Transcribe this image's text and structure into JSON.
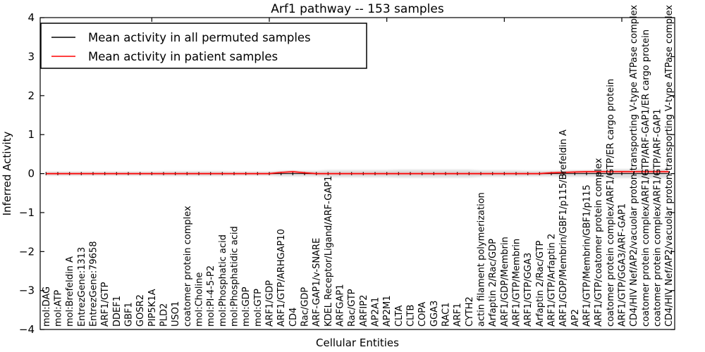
{
  "chart_data": {
    "type": "line",
    "title": "Arf1 pathway -- 153 samples",
    "xlabel": "Cellular Entities",
    "ylabel": "Inferred Activity",
    "ylim": [
      -4,
      4
    ],
    "yticks": [
      4,
      3,
      2,
      1,
      0,
      -1,
      -2,
      -3,
      -4
    ],
    "grid": false,
    "legend_position": "upper left",
    "legend_entries": [
      {
        "label": "Mean activity in all permuted samples",
        "color": "#000000"
      },
      {
        "label": "Mean activity in patient samples",
        "color": "#ff0000"
      }
    ],
    "categories": [
      "mol:DAG",
      "mol:ATP",
      "mol:Brefeldin A",
      "EntrezGene:1313",
      "EntrezGene:79658",
      "ARF1/GTP",
      "DDEF1",
      "GBF1",
      "GOSR2",
      "PIP5K1A",
      "PLD2",
      "USO1",
      "coatomer protein complex",
      "mol:Choline",
      "mol:PI-4-5-P2",
      "mol:Phosphatic acid",
      "mol:Phosphatidic acid",
      "mol:GDP",
      "mol:GTP",
      "ARF1/GDP",
      "ARF1/GTP/ARHGAP10",
      "CD4",
      "Rac/GDP",
      "ARF-GAP1/v-SNARE",
      "KDEL Receptor/Ligand/ARF-GAP1",
      "ARFGAP1",
      "Rac/GTP",
      "ARFIP2",
      "AP2A1",
      "AP2M1",
      "CLTA",
      "CLTB",
      "COPA",
      "GGA3",
      "RAC1",
      "ARF1",
      "CYTH2",
      "actin filament polymerization",
      "Arfaptin 2/Rac/GDP",
      "ARF1/GDP/Membrin",
      "ARF1/GTP/Membrin",
      "ARF1/GTP/GGA3",
      "Arfaptin 2/Rac/GTP",
      "ARF1/GTP/Arfaptin 2",
      "ARF1/GDP/Membrin/GBF1/p115/Brefeldin A",
      "AP2",
      "ARF1/GTP/Membrin/GBF1/p115",
      "ARF1/GTP/coatomer protein complex",
      "coatomer protein complex/ARF1/GTP/ER cargo protein",
      "ARF1/GTP/GGA3/ARF-GAP1",
      "CD4/HIV Nef/AP2/vacuolar proton-transporting V-type ATPase complex",
      "coatomer protein complex/ARF1/GTP/ARF-GAP1/ER cargo protein",
      "coatomer protein complex/ARF1/GTP/ARF-GAP1",
      "CD4/HIV Nef/AP2/vacuolar proton-transporting V-type ATPase complex"
    ],
    "series": [
      {
        "name": "Mean activity in all permuted samples",
        "color": "#000000",
        "values": [
          0,
          0,
          0,
          0,
          0,
          0,
          0,
          0,
          0,
          0,
          0,
          0,
          0,
          0,
          0,
          0,
          0,
          0,
          0,
          0,
          0,
          0,
          0,
          0,
          0,
          0,
          0,
          0,
          0,
          0,
          0,
          0,
          0,
          0,
          0,
          0,
          0,
          0,
          0,
          0,
          0,
          0,
          0,
          0,
          0,
          0,
          0,
          0,
          0,
          0,
          0,
          0,
          0,
          0
        ]
      },
      {
        "name": "Mean activity in patient samples",
        "color": "#ff0000",
        "values": [
          0,
          0,
          0,
          0,
          0,
          0,
          0,
          0,
          0,
          0,
          0,
          0,
          0,
          0,
          0,
          0,
          0,
          0,
          0,
          0,
          0.03,
          0.05,
          0.02,
          0,
          0,
          0,
          0,
          0,
          0,
          0,
          0,
          0,
          0,
          0,
          0,
          0,
          0,
          0,
          0,
          0,
          0,
          0,
          0,
          0.02,
          0.03,
          0.04,
          0.05,
          0.05,
          0.05,
          0.05,
          0.05,
          0.05,
          0.05,
          0.05
        ]
      }
    ],
    "errorbar_halfheight": 0.04,
    "band_halfwidths": [
      0.05,
      0.05,
      0.05,
      0.05,
      0.05,
      0.05,
      0.05,
      0.05,
      0.05,
      0.05,
      0.06,
      0.06,
      0.06,
      0.06,
      0.06,
      0.06,
      0.05,
      0.05,
      0.05,
      0.05,
      0.07,
      0.07,
      0.07,
      0.07,
      0.09,
      0.09,
      0.09,
      0.09,
      0.09,
      0.09,
      0.1,
      0.1,
      0.1,
      0.1,
      0.1,
      0.1,
      0.1,
      0.08,
      0.08,
      0.08,
      0.08,
      0.07,
      0.07,
      0.07,
      0.08,
      0.08,
      0.08,
      0.08,
      0.11,
      0.11,
      0.11,
      0.11,
      0.11,
      0.11
    ],
    "xtick_top_indices": [
      9,
      19,
      29,
      39,
      49
    ],
    "band_color": "#000000",
    "band_opacity": 0.13
  }
}
